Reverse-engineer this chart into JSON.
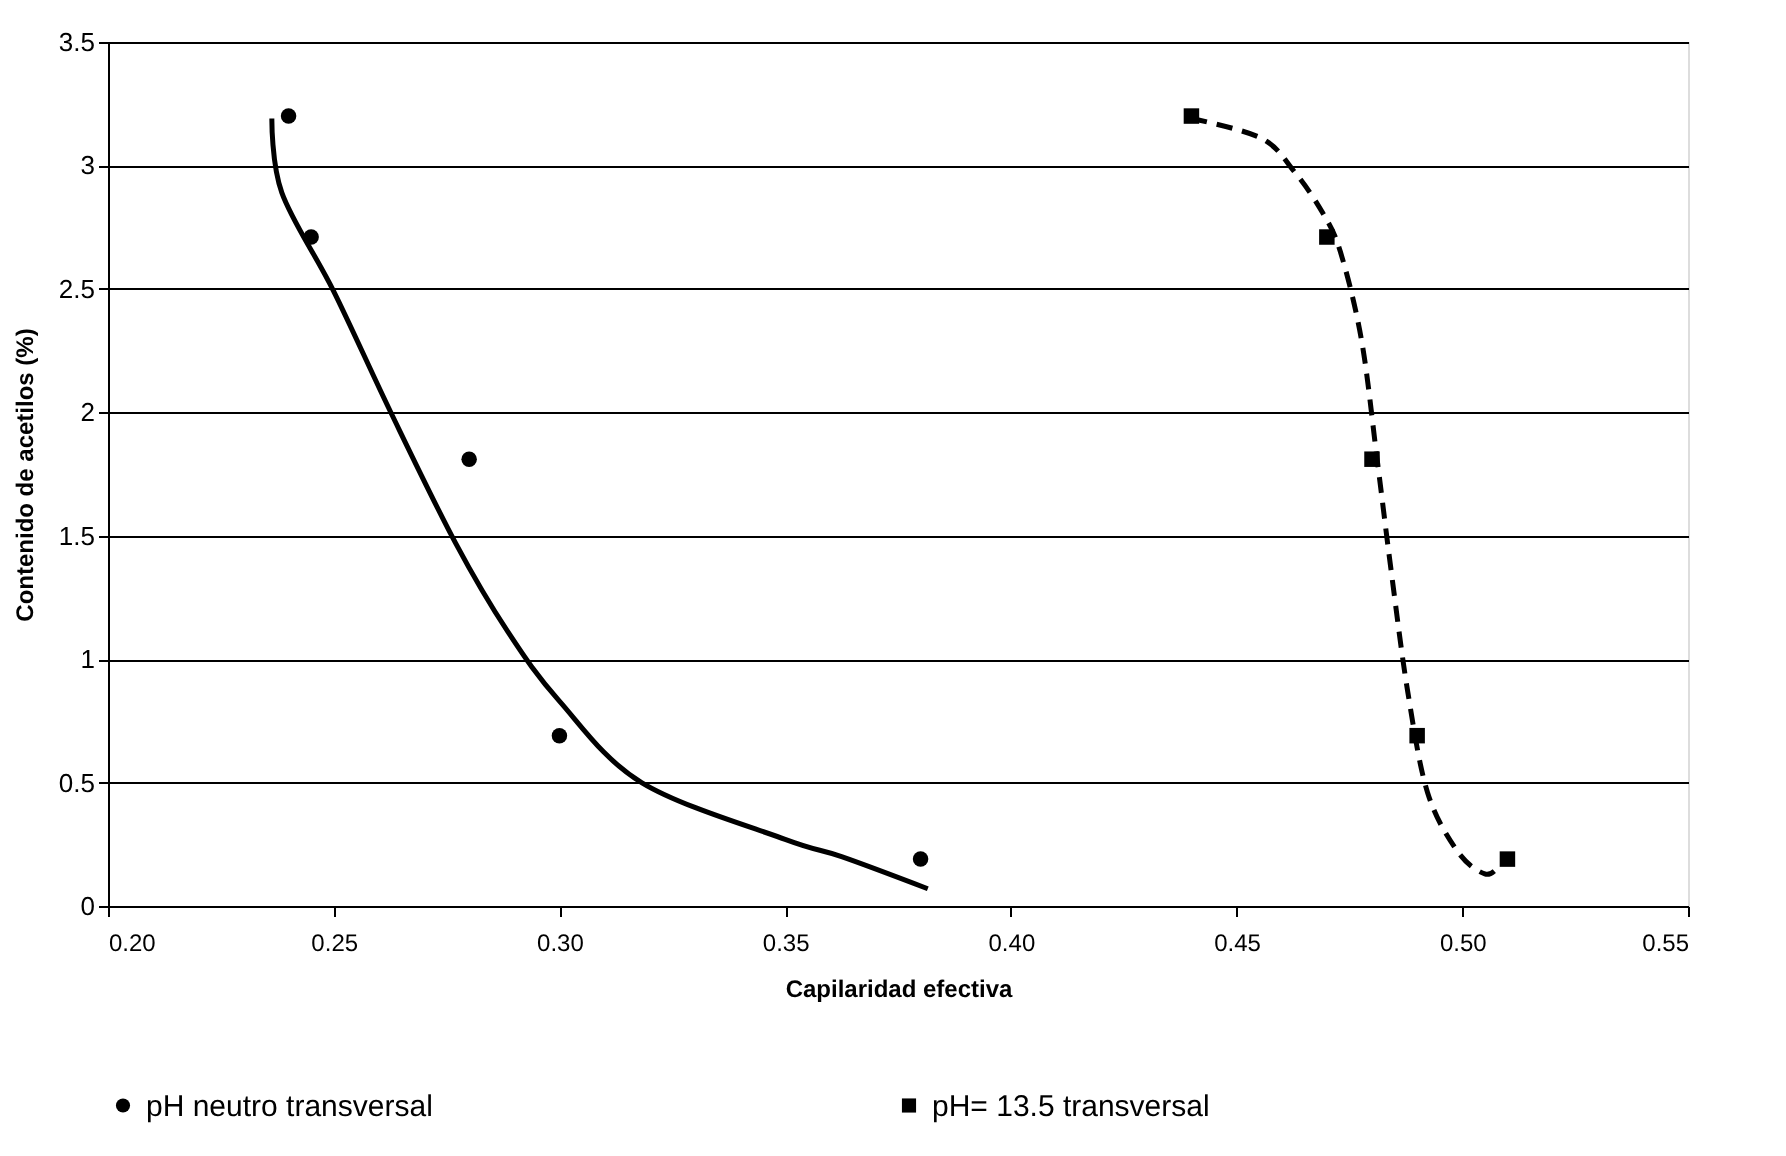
{
  "chart_data": {
    "type": "scatter",
    "xlabel": "Capilaridad efectiva",
    "ylabel": "Contenido de acetilos (%)",
    "xlim": [
      0.2,
      0.55
    ],
    "xticks": [
      {
        "value": 0.2,
        "label": "0.20"
      },
      {
        "value": 0.25,
        "label": "0.25"
      },
      {
        "value": 0.3,
        "label": "0.30"
      },
      {
        "value": 0.35,
        "label": "0.35"
      },
      {
        "value": 0.4,
        "label": "0.40"
      },
      {
        "value": 0.45,
        "label": "0.45"
      },
      {
        "value": 0.5,
        "label": "0.50"
      },
      {
        "value": 0.55,
        "label": "0.55"
      }
    ],
    "ylim": [
      0,
      3.5
    ],
    "yticks": [
      0,
      0.5,
      1,
      1.5,
      2,
      2.5,
      3,
      3.5
    ],
    "grid": "y",
    "legend": "bottom",
    "series": [
      {
        "name": "pH neutro transversal",
        "marker": "circle",
        "color": "#000000",
        "x": [
          0.24,
          0.245,
          0.28,
          0.3,
          0.38
        ],
        "values": [
          3.2,
          2.71,
          1.81,
          0.69,
          0.19
        ]
      },
      {
        "name": "pH= 13.5 transversal",
        "marker": "square",
        "color": "#000000",
        "x": [
          0.44,
          0.47,
          0.48,
          0.49,
          0.51
        ],
        "values": [
          3.2,
          2.71,
          1.81,
          0.69,
          0.19
        ]
      },
      {
        "type": "line",
        "marker": "none",
        "line_style": "solid",
        "color": "#000000",
        "x": [
          0.2363,
          0.2385,
          0.25,
          0.2629,
          0.277,
          0.2886,
          0.3,
          0.3182,
          0.35,
          0.3625,
          0.3816
        ],
        "values": [
          3.19,
          2.89,
          2.49,
          1.99,
          1.47,
          1.11,
          0.83,
          0.5,
          0.27,
          0.2,
          0.07
        ]
      },
      {
        "type": "line",
        "marker": "none",
        "line_style": "dashed",
        "color": "#000000",
        "x": [
          0.44,
          0.4555,
          0.463,
          0.469,
          0.473,
          0.4777,
          0.4812,
          0.4843,
          0.4879,
          0.4923,
          0.499,
          0.505,
          0.508
        ],
        "values": [
          3.19,
          3.11,
          2.97,
          2.81,
          2.65,
          2.29,
          1.8,
          1.35,
          0.87,
          0.46,
          0.22,
          0.13,
          0.16
        ]
      }
    ]
  }
}
